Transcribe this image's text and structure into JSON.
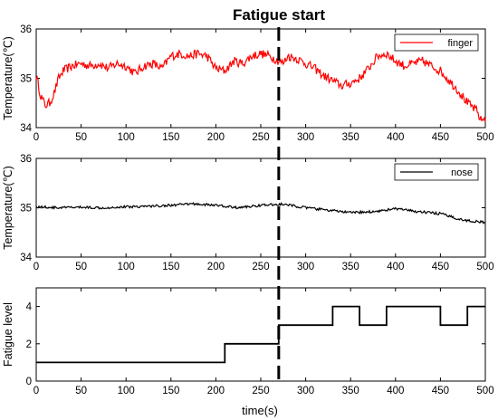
{
  "annotation": {
    "label": "Fatigue start",
    "x": 270
  },
  "xlabel": "time(s)",
  "chart_data": [
    {
      "type": "line",
      "xlim": [
        0,
        500
      ],
      "ylim": [
        34,
        36
      ],
      "xticks": [
        0,
        50,
        100,
        150,
        200,
        250,
        300,
        350,
        400,
        450,
        500
      ],
      "yticks": [
        34,
        35,
        36
      ],
      "ylabel": "Temperature(℃)",
      "legend_placement": "top-right",
      "series": [
        {
          "name": "finger",
          "color": "#ff0000",
          "x": [
            0,
            5,
            10,
            15,
            20,
            25,
            30,
            35,
            40,
            50,
            60,
            70,
            80,
            90,
            100,
            110,
            120,
            130,
            140,
            150,
            160,
            170,
            180,
            190,
            200,
            210,
            220,
            230,
            240,
            250,
            260,
            270,
            275,
            280,
            290,
            300,
            310,
            320,
            330,
            340,
            350,
            360,
            370,
            380,
            390,
            400,
            410,
            420,
            430,
            440,
            450,
            460,
            470,
            480,
            490,
            495,
            500
          ],
          "y": [
            35.05,
            34.65,
            34.45,
            34.5,
            34.7,
            35.0,
            35.15,
            35.2,
            35.25,
            35.3,
            35.25,
            35.3,
            35.2,
            35.3,
            35.25,
            35.1,
            35.25,
            35.3,
            35.2,
            35.45,
            35.5,
            35.45,
            35.5,
            35.45,
            35.2,
            35.15,
            35.35,
            35.3,
            35.45,
            35.5,
            35.45,
            35.35,
            35.3,
            35.45,
            35.4,
            35.3,
            35.2,
            35.05,
            34.95,
            34.85,
            34.9,
            35.0,
            35.2,
            35.45,
            35.5,
            35.35,
            35.25,
            35.3,
            35.35,
            35.25,
            35.15,
            34.95,
            34.75,
            34.5,
            34.35,
            34.15,
            34.2
          ]
        }
      ],
      "grid": false
    },
    {
      "type": "line",
      "xlim": [
        0,
        500
      ],
      "ylim": [
        34,
        36
      ],
      "xticks": [
        0,
        50,
        100,
        150,
        200,
        250,
        300,
        350,
        400,
        450,
        500
      ],
      "yticks": [
        34,
        35,
        36
      ],
      "ylabel": "Temperature(℃)",
      "legend_placement": "top-right",
      "series": [
        {
          "name": "nose",
          "color": "#000000",
          "x": [
            0,
            25,
            50,
            75,
            100,
            125,
            150,
            175,
            200,
            225,
            250,
            275,
            300,
            325,
            350,
            375,
            400,
            425,
            450,
            475,
            500
          ],
          "y": [
            35.02,
            35.0,
            35.01,
            35.0,
            35.02,
            35.03,
            35.05,
            35.08,
            35.05,
            35.0,
            35.05,
            35.07,
            35.0,
            34.95,
            34.9,
            34.92,
            34.98,
            34.92,
            34.88,
            34.75,
            34.7
          ]
        }
      ],
      "grid": false
    },
    {
      "type": "line",
      "step": true,
      "xlim": [
        0,
        500
      ],
      "ylim": [
        0,
        5
      ],
      "xticks": [
        0,
        50,
        100,
        150,
        200,
        250,
        300,
        350,
        400,
        450,
        500
      ],
      "yticks": [
        0,
        2,
        4
      ],
      "ylabel": "Fatigue level",
      "xlabel": "time(s)",
      "series": [
        {
          "color": "#000000",
          "x": [
            0,
            210,
            210,
            270,
            270,
            330,
            330,
            360,
            360,
            390,
            390,
            450,
            450,
            480,
            480,
            500
          ],
          "y": [
            1,
            1,
            2,
            2,
            3,
            3,
            4,
            4,
            3,
            3,
            4,
            4,
            3,
            3,
            4,
            4
          ]
        }
      ],
      "grid": false
    }
  ]
}
